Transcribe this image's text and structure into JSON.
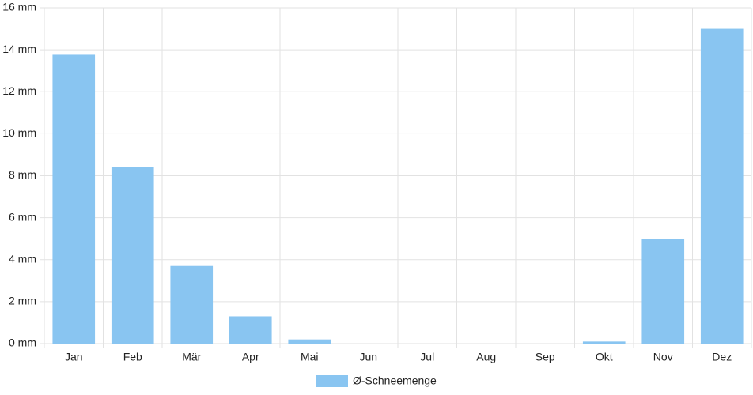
{
  "chart_data": {
    "type": "bar",
    "categories": [
      "Jan",
      "Feb",
      "Mär",
      "Apr",
      "Mai",
      "Jun",
      "Jul",
      "Aug",
      "Sep",
      "Okt",
      "Nov",
      "Dez"
    ],
    "series": [
      {
        "name": "Ø-Schneemenge",
        "color": "#89c5f1",
        "values": [
          13.8,
          8.4,
          3.7,
          1.3,
          0.2,
          0,
          0,
          0,
          0,
          0.1,
          5.0,
          15.0
        ]
      }
    ],
    "ylim": [
      0,
      16
    ],
    "yticks": [
      {
        "value": 0,
        "label": "0 mm"
      },
      {
        "value": 2,
        "label": "2 mm"
      },
      {
        "value": 4,
        "label": "4 mm"
      },
      {
        "value": 6,
        "label": "6 mm"
      },
      {
        "value": 8,
        "label": "8 mm"
      },
      {
        "value": 10,
        "label": "10 mm"
      },
      {
        "value": 12,
        "label": "12 mm"
      },
      {
        "value": 14,
        "label": "14 mm"
      },
      {
        "value": 16,
        "label": "16 mm"
      }
    ],
    "grid": true,
    "legend": "bottom"
  }
}
